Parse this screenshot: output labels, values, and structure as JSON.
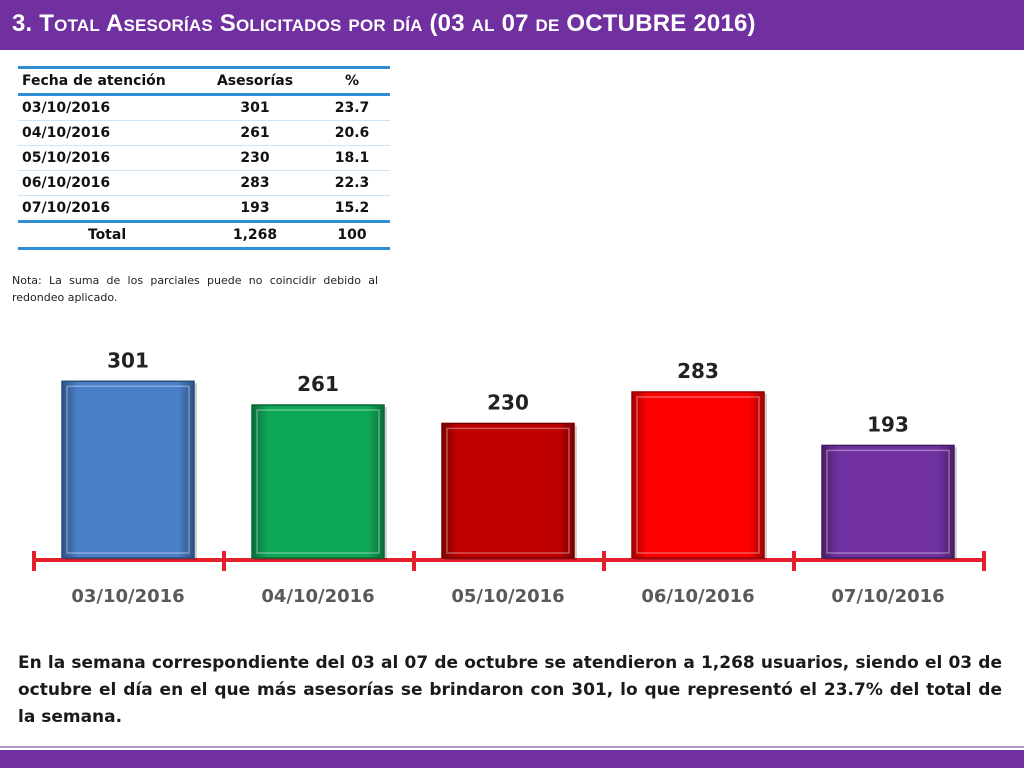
{
  "title": "3.  Total Asesorías Solicitados por día  (03 al 07 de OCTUBRE  2016)",
  "colors": {
    "header": "#7030a0",
    "table_rule": "#2f8fd6",
    "axis": "#e51f2b"
  },
  "table": {
    "headers": [
      "Fecha de atención",
      "Asesorías",
      "%"
    ],
    "rows": [
      [
        "03/10/2016",
        "301",
        "23.7"
      ],
      [
        "04/10/2016",
        "261",
        "20.6"
      ],
      [
        "05/10/2016",
        "230",
        "18.1"
      ],
      [
        "06/10/2016",
        "283",
        "22.3"
      ],
      [
        "07/10/2016",
        "193",
        "15.2"
      ]
    ],
    "total": [
      "Total",
      "1,268",
      "100"
    ]
  },
  "note": "Nota: La suma de los parciales puede no coincidir debido al redondeo aplicado.",
  "chart_data": {
    "type": "bar",
    "title": "",
    "xlabel": "",
    "ylabel": "",
    "categories": [
      "03/10/2016",
      "04/10/2016",
      "05/10/2016",
      "06/10/2016",
      "07/10/2016"
    ],
    "values": [
      301,
      261,
      230,
      283,
      193
    ],
    "data_labels": [
      "301",
      "261",
      "230",
      "283",
      "193"
    ],
    "bar_colors": [
      "#4a7fc9",
      "#0fa857",
      "#c00000",
      "#ff0000",
      "#7030a0"
    ],
    "ylim": [
      0,
      320
    ],
    "grid": false,
    "legend": "none"
  },
  "summary": "En la semana correspondiente del 03 al 07 de octubre se  atendieron a 1,268 usuarios, siendo el 03 de octubre el día en el que más asesorías se brindaron con 301, lo que representó el 23.7% del total de la semana."
}
